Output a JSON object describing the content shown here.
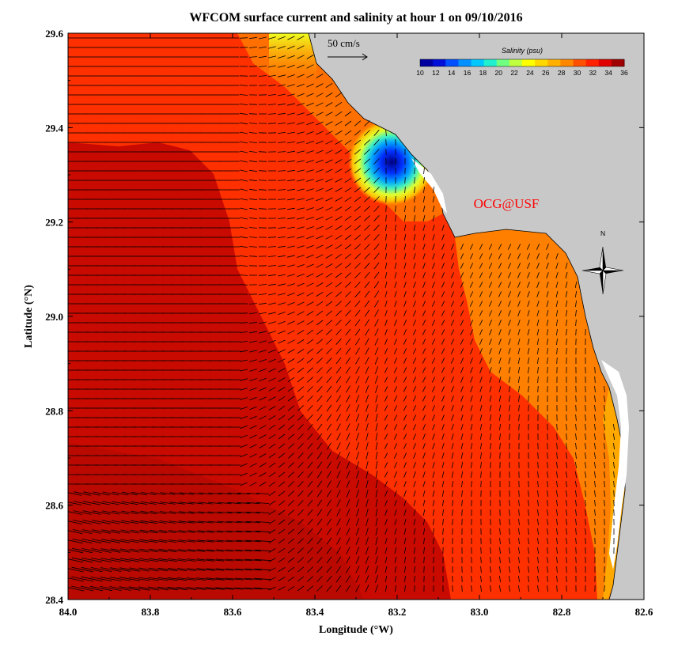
{
  "title": "WFCOM surface current and salinity at hour 1 on 09/10/2016",
  "x_axis_label": "Longitude (°W)",
  "y_axis_label": "Latitude (°N)",
  "x_ticks": [
    "84.0",
    "83.8",
    "83.6",
    "83.4",
    "83.2",
    "83.0",
    "82.8",
    "82.6"
  ],
  "y_ticks": [
    "29.6",
    "29.4",
    "29.2",
    "29.0",
    "28.8",
    "28.6",
    "28.4"
  ],
  "colorbar": {
    "title": "Salinity (psu)",
    "labels": [
      "10",
      "12",
      "14",
      "16",
      "18",
      "20",
      "22",
      "24",
      "26",
      "28",
      "30",
      "32",
      "34",
      "36"
    ],
    "colors": [
      "#0000a0",
      "#0010d8",
      "#0050ff",
      "#0090ff",
      "#00c8ff",
      "#20f0d0",
      "#70ff80",
      "#c0ff40",
      "#ffff00",
      "#ffd800",
      "#ffb000",
      "#ff8800",
      "#ff5000",
      "#ff2000",
      "#e00000",
      "#a00000"
    ]
  },
  "scale_vector_label": "50 cm/s",
  "credit": "OCG@USF",
  "north_arrow_label": "N",
  "colors": {
    "land": "#c8c8c8",
    "salinity_high": "#c80a00",
    "salinity_mid": "#ff3000",
    "salinity_low": "#ff9000",
    "credit": "#ff0000"
  }
}
